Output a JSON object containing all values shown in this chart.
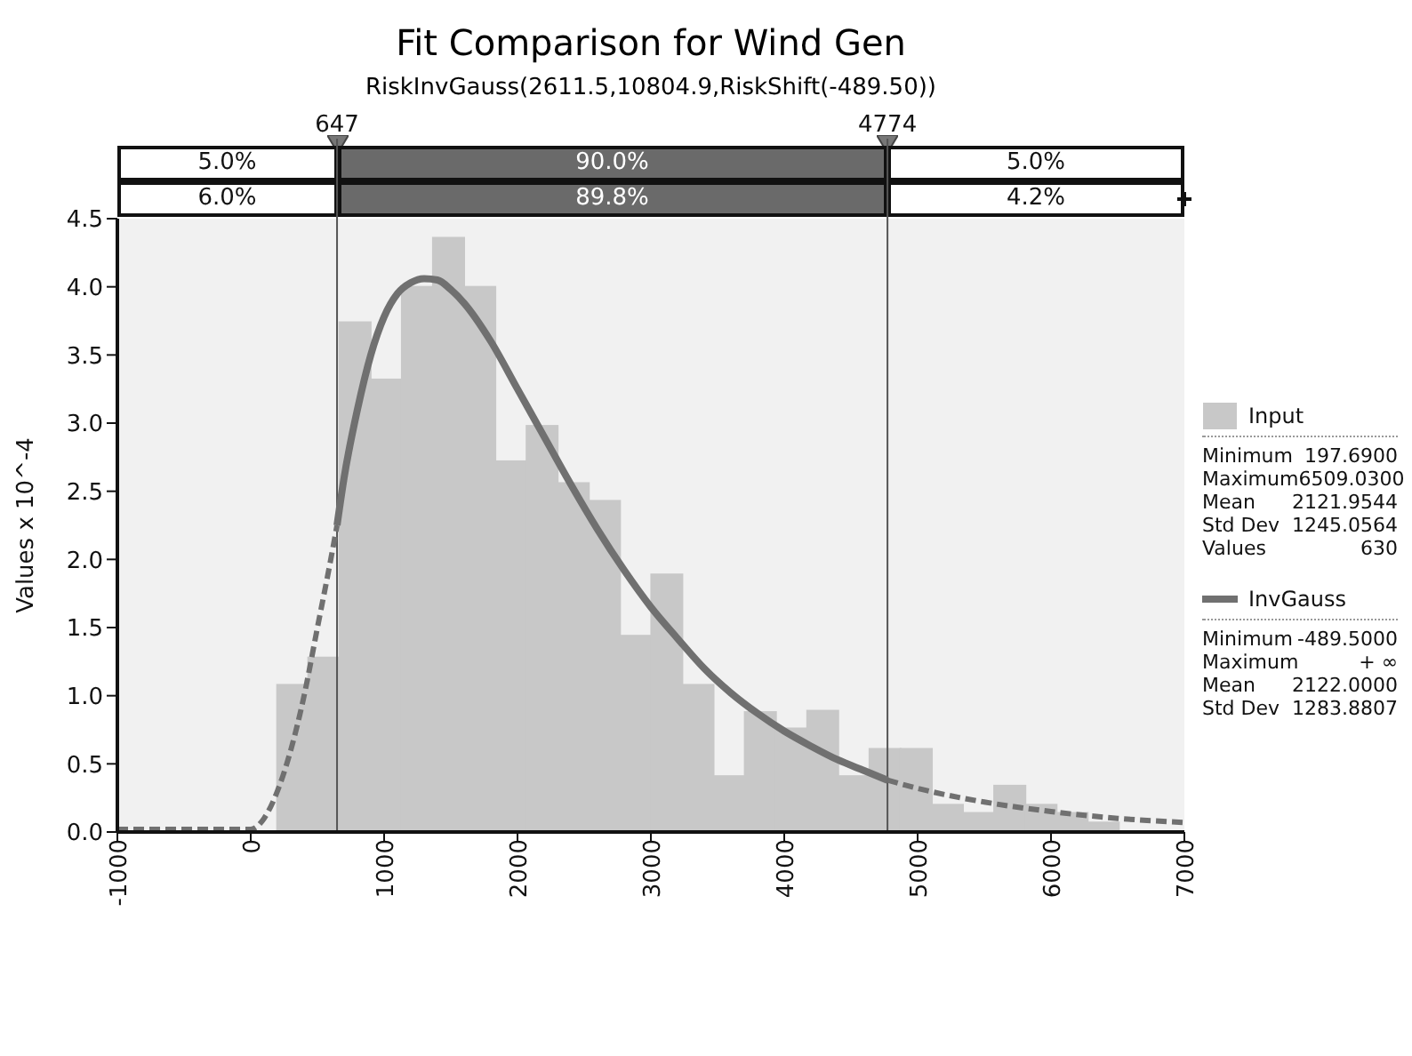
{
  "chart_data": {
    "type": "histogram",
    "title": "Fit Comparison for Wind Gen",
    "subtitle": "RiskInvGauss(2611.5,10804.9,RiskShift(-489.50))",
    "ylabel": "Values x 10^-4",
    "xlim": [
      -1000,
      7000
    ],
    "xticks": [
      -1000,
      0,
      1000,
      2000,
      3000,
      4000,
      5000,
      6000,
      7000
    ],
    "ylim": [
      0,
      4.5
    ],
    "yticks": [
      {
        "value": 0,
        "label": "0.0"
      },
      {
        "value": 0.5,
        "label": "0.5"
      },
      {
        "value": 1,
        "label": "1.0"
      },
      {
        "value": 1.5,
        "label": "1.5"
      },
      {
        "value": 2,
        "label": "2.0"
      },
      {
        "value": 2.5,
        "label": "2.5"
      },
      {
        "value": 3,
        "label": "3.0"
      },
      {
        "value": 3.5,
        "label": "3.5"
      },
      {
        "value": 4,
        "label": "4.0"
      },
      {
        "value": 4.5,
        "label": "4.5"
      }
    ],
    "legend": "right",
    "series": [
      {
        "name": "Input",
        "color": "#c8c8c8",
        "bins": [
          198,
          431,
          665,
          899,
          1133,
          1366,
          1600,
          1834,
          2068,
          2301,
          2535,
          2769,
          3003,
          3236,
          3470,
          3704,
          3938,
          4172,
          4405,
          4639,
          4873,
          5107,
          5340,
          5574,
          5808,
          6042,
          6275,
          6509
        ],
        "values": [
          1.08,
          1.28,
          3.74,
          3.32,
          4.0,
          4.36,
          4.0,
          2.72,
          2.98,
          2.56,
          2.43,
          1.44,
          1.89,
          1.08,
          0.41,
          0.88,
          0.76,
          0.89,
          0.41,
          0.61,
          0.61,
          0.2,
          0.14,
          0.34,
          0.2,
          0.14,
          0.07
        ]
      },
      {
        "type": "line",
        "color": "#707070",
        "line_style": "dashed",
        "x": [
          -1000,
          0,
          100,
          200,
          300,
          400,
          500,
          600,
          647
        ],
        "values": [
          0.02,
          0.02,
          0.1,
          0.3,
          0.6,
          1.0,
          1.5,
          2.0,
          2.25
        ]
      },
      {
        "name": "InvGauss",
        "type": "line",
        "color": "#707070",
        "line_style": "solid",
        "x": [
          647,
          700,
          800,
          900,
          1000,
          1100,
          1200,
          1300,
          1400,
          1500,
          1600,
          1800,
          2000,
          2200,
          2400,
          2600,
          2800,
          3000,
          3200,
          3400,
          3600,
          3800,
          4000,
          4200,
          4400,
          4600,
          4774
        ],
        "values": [
          2.25,
          2.6,
          3.1,
          3.5,
          3.78,
          3.95,
          4.03,
          4.06,
          4.05,
          3.98,
          3.88,
          3.6,
          3.25,
          2.9,
          2.55,
          2.22,
          1.92,
          1.65,
          1.42,
          1.2,
          1.02,
          0.87,
          0.74,
          0.63,
          0.53,
          0.45,
          0.38
        ]
      },
      {
        "type": "line",
        "color": "#707070",
        "line_style": "dashed",
        "x": [
          4774,
          5000,
          5500,
          6000,
          6500,
          7000
        ],
        "values": [
          0.38,
          0.32,
          0.22,
          0.15,
          0.1,
          0.07
        ]
      }
    ],
    "ref_lines": [
      {
        "axis": "x",
        "value": 647,
        "label": "647",
        "color": "#555555"
      },
      {
        "axis": "x",
        "value": 4774,
        "label": "4774",
        "color": "#555555"
      }
    ],
    "annotations": [
      "5.0%",
      "90.0%",
      "5.0%",
      "6.0%",
      "89.8%",
      "4.2%",
      "Minimum",
      "197.6900",
      "Maximum",
      "6509.0300",
      "Mean",
      "2121.9544",
      "Std Dev",
      "1245.0564",
      "Values",
      "630",
      "Minimum",
      "-489.5000",
      "Maximum",
      "+ ∞",
      "Mean",
      "2122.0000",
      "Std Dev",
      "1283.8807"
    ]
  }
}
